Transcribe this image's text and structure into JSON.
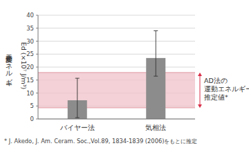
{
  "chart_data": {
    "type": "bar",
    "y_label": [
      "粒子変形エネルギー",
      "Ed (×10⁷ J/m³)"
    ],
    "categories": [
      "バイヤー法",
      "気相法"
    ],
    "values": [
      7.2,
      23.5
    ],
    "error_minus": [
      6.7,
      7.0
    ],
    "error_plus": [
      8.5,
      10.5
    ],
    "color": "#8c8c8c",
    "ylim": [
      0,
      40
    ],
    "yticks": [
      0,
      5,
      10,
      15,
      20,
      25,
      30,
      35,
      40
    ],
    "grid": true,
    "band": {
      "range": [
        4.3,
        17.9
      ],
      "color": "#efc2c8",
      "label": [
        "AD法の",
        "運動エネルギー",
        "推定値*"
      ]
    },
    "footnote": "* J. Akedo, J. Am. Ceram. Soc.,Vol.89, 1834-1839 (2006)をもとに推定"
  }
}
